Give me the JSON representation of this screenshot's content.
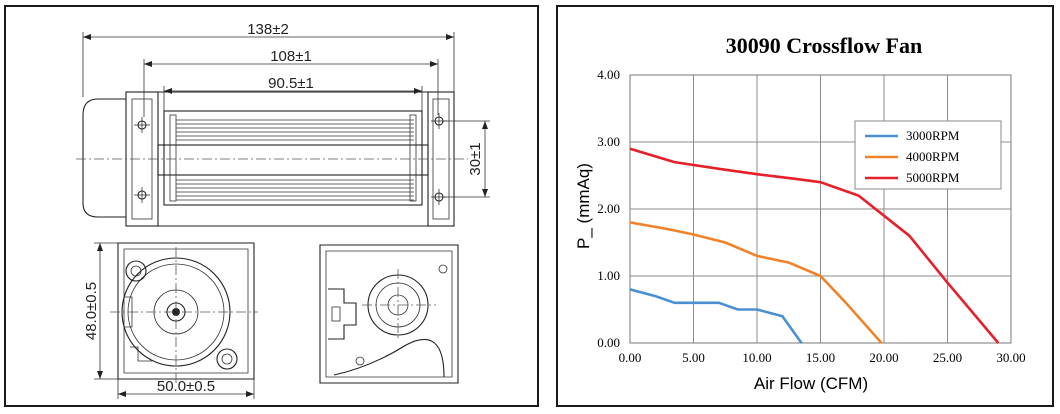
{
  "drawing": {
    "dim_overall_length": "138±2",
    "dim_housing_length": "108±1",
    "dim_impeller_length": "90.5±1",
    "dim_side_height": "30±1",
    "dim_end_height": "48.0±0.5",
    "dim_end_width": "50.0±0.5"
  },
  "chart_data": {
    "type": "line",
    "title": "30090 Crossflow Fan",
    "xlabel": "Air Flow (CFM)",
    "ylabel": "P_ (mmAq)",
    "xlim": [
      0,
      30
    ],
    "ylim": [
      0,
      4
    ],
    "xticks": [
      "0.00",
      "5.00",
      "10.00",
      "15.00",
      "20.00",
      "25.00",
      "30.00"
    ],
    "yticks": [
      "0.00",
      "1.00",
      "2.00",
      "3.00",
      "4.00"
    ],
    "grid": true,
    "legend_position": "right",
    "series": [
      {
        "name": "3000RPM",
        "color": "#4a90d0",
        "points": [
          [
            0,
            0.8
          ],
          [
            2,
            0.7
          ],
          [
            3.5,
            0.6
          ],
          [
            5,
            0.6
          ],
          [
            7,
            0.6
          ],
          [
            8.5,
            0.5
          ],
          [
            10,
            0.5
          ],
          [
            12,
            0.4
          ],
          [
            13.5,
            0.0
          ]
        ]
      },
      {
        "name": "4000RPM",
        "color": "#f0832a",
        "points": [
          [
            0,
            1.8
          ],
          [
            3,
            1.7
          ],
          [
            5,
            1.62
          ],
          [
            7.5,
            1.5
          ],
          [
            10,
            1.3
          ],
          [
            12.5,
            1.2
          ],
          [
            15,
            1.0
          ],
          [
            17,
            0.6
          ],
          [
            19.8,
            0.0
          ]
        ]
      },
      {
        "name": "5000RPM",
        "color": "#e5202a",
        "points": [
          [
            0,
            2.9
          ],
          [
            3.5,
            2.7
          ],
          [
            7,
            2.6
          ],
          [
            10,
            2.52
          ],
          [
            13,
            2.45
          ],
          [
            15,
            2.4
          ],
          [
            18,
            2.2
          ],
          [
            20,
            1.9
          ],
          [
            22,
            1.6
          ],
          [
            25,
            0.9
          ],
          [
            29,
            0.0
          ]
        ]
      }
    ]
  }
}
